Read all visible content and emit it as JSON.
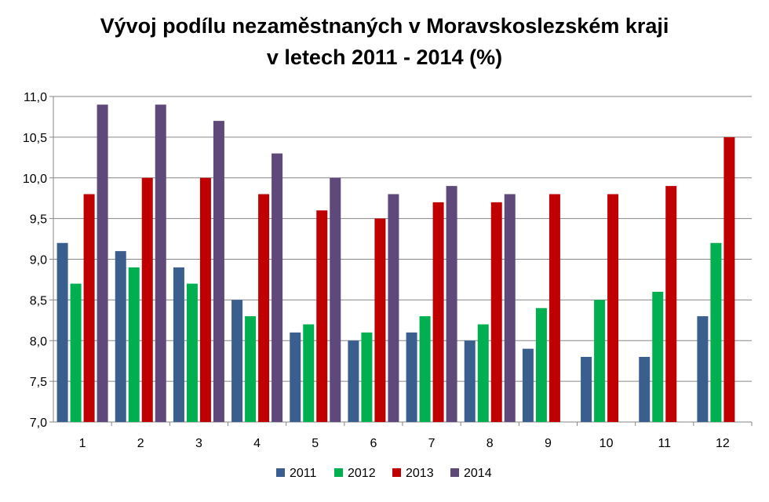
{
  "chart_data": {
    "type": "bar",
    "title_line1": "Vývoj podílu nezaměstnaných v Moravskoslezském kraji",
    "title_line2": "v letech 2011 - 2014 (%)",
    "xlabel": "",
    "ylabel": "",
    "categories": [
      "1",
      "2",
      "3",
      "4",
      "5",
      "6",
      "7",
      "8",
      "9",
      "10",
      "11",
      "12"
    ],
    "ylim": [
      7.0,
      11.0
    ],
    "yticks": [
      7.0,
      7.5,
      8.0,
      8.5,
      9.0,
      9.5,
      10.0,
      10.5,
      11.0
    ],
    "ytick_labels": [
      "7,0",
      "7,5",
      "8,0",
      "8,5",
      "9,0",
      "9,5",
      "10,0",
      "10,5",
      "11,0"
    ],
    "grid": true,
    "legend_position": "bottom",
    "series": [
      {
        "name": "2011",
        "color": "#3A5F8F",
        "values": [
          9.2,
          9.1,
          8.9,
          8.5,
          8.1,
          8.0,
          8.1,
          8.0,
          7.9,
          7.8,
          7.8,
          8.3
        ]
      },
      {
        "name": "2012",
        "color": "#00B050",
        "values": [
          8.7,
          8.9,
          8.7,
          8.3,
          8.2,
          8.1,
          8.3,
          8.2,
          8.4,
          8.5,
          8.6,
          9.2
        ]
      },
      {
        "name": "2013",
        "color": "#C00000",
        "values": [
          9.8,
          10.0,
          10.0,
          9.8,
          9.6,
          9.5,
          9.7,
          9.7,
          9.8,
          9.8,
          9.9,
          10.5
        ]
      },
      {
        "name": "2014",
        "color": "#5F497A",
        "values": [
          10.9,
          10.9,
          10.7,
          10.3,
          10.0,
          9.8,
          9.9,
          9.8,
          null,
          null,
          null,
          null
        ]
      }
    ]
  }
}
